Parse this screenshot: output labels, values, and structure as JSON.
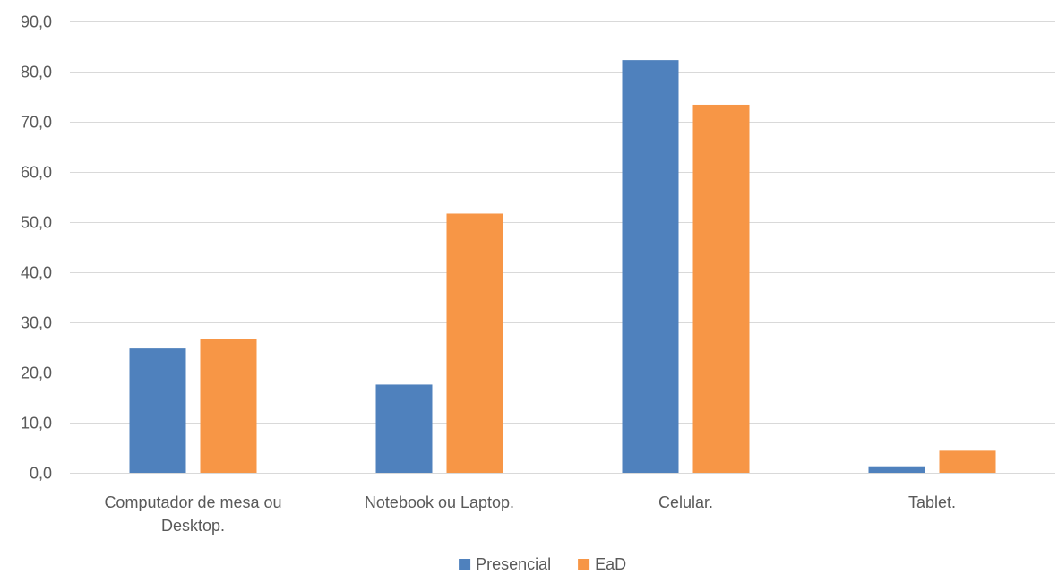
{
  "chart_data": {
    "type": "bar",
    "title": "",
    "xlabel": "",
    "ylabel": "",
    "categories": [
      [
        "Computador de mesa ou",
        "Desktop."
      ],
      [
        "Notebook ou Laptop."
      ],
      [
        "Celular."
      ],
      [
        "Tablet."
      ]
    ],
    "series": [
      {
        "name": "Presencial",
        "color": "#4f81bd",
        "values": [
          24.8,
          17.6,
          82.3,
          1.3
        ]
      },
      {
        "name": "EaD",
        "color": "#f79646",
        "values": [
          26.7,
          51.7,
          73.4,
          4.4
        ]
      }
    ],
    "ylim": [
      0,
      90
    ],
    "yticks": [
      "0,0",
      "10,0",
      "20,0",
      "30,0",
      "40,0",
      "50,0",
      "60,0",
      "70,0",
      "80,0",
      "90,0"
    ],
    "grid": true,
    "legend_position": "bottom"
  }
}
